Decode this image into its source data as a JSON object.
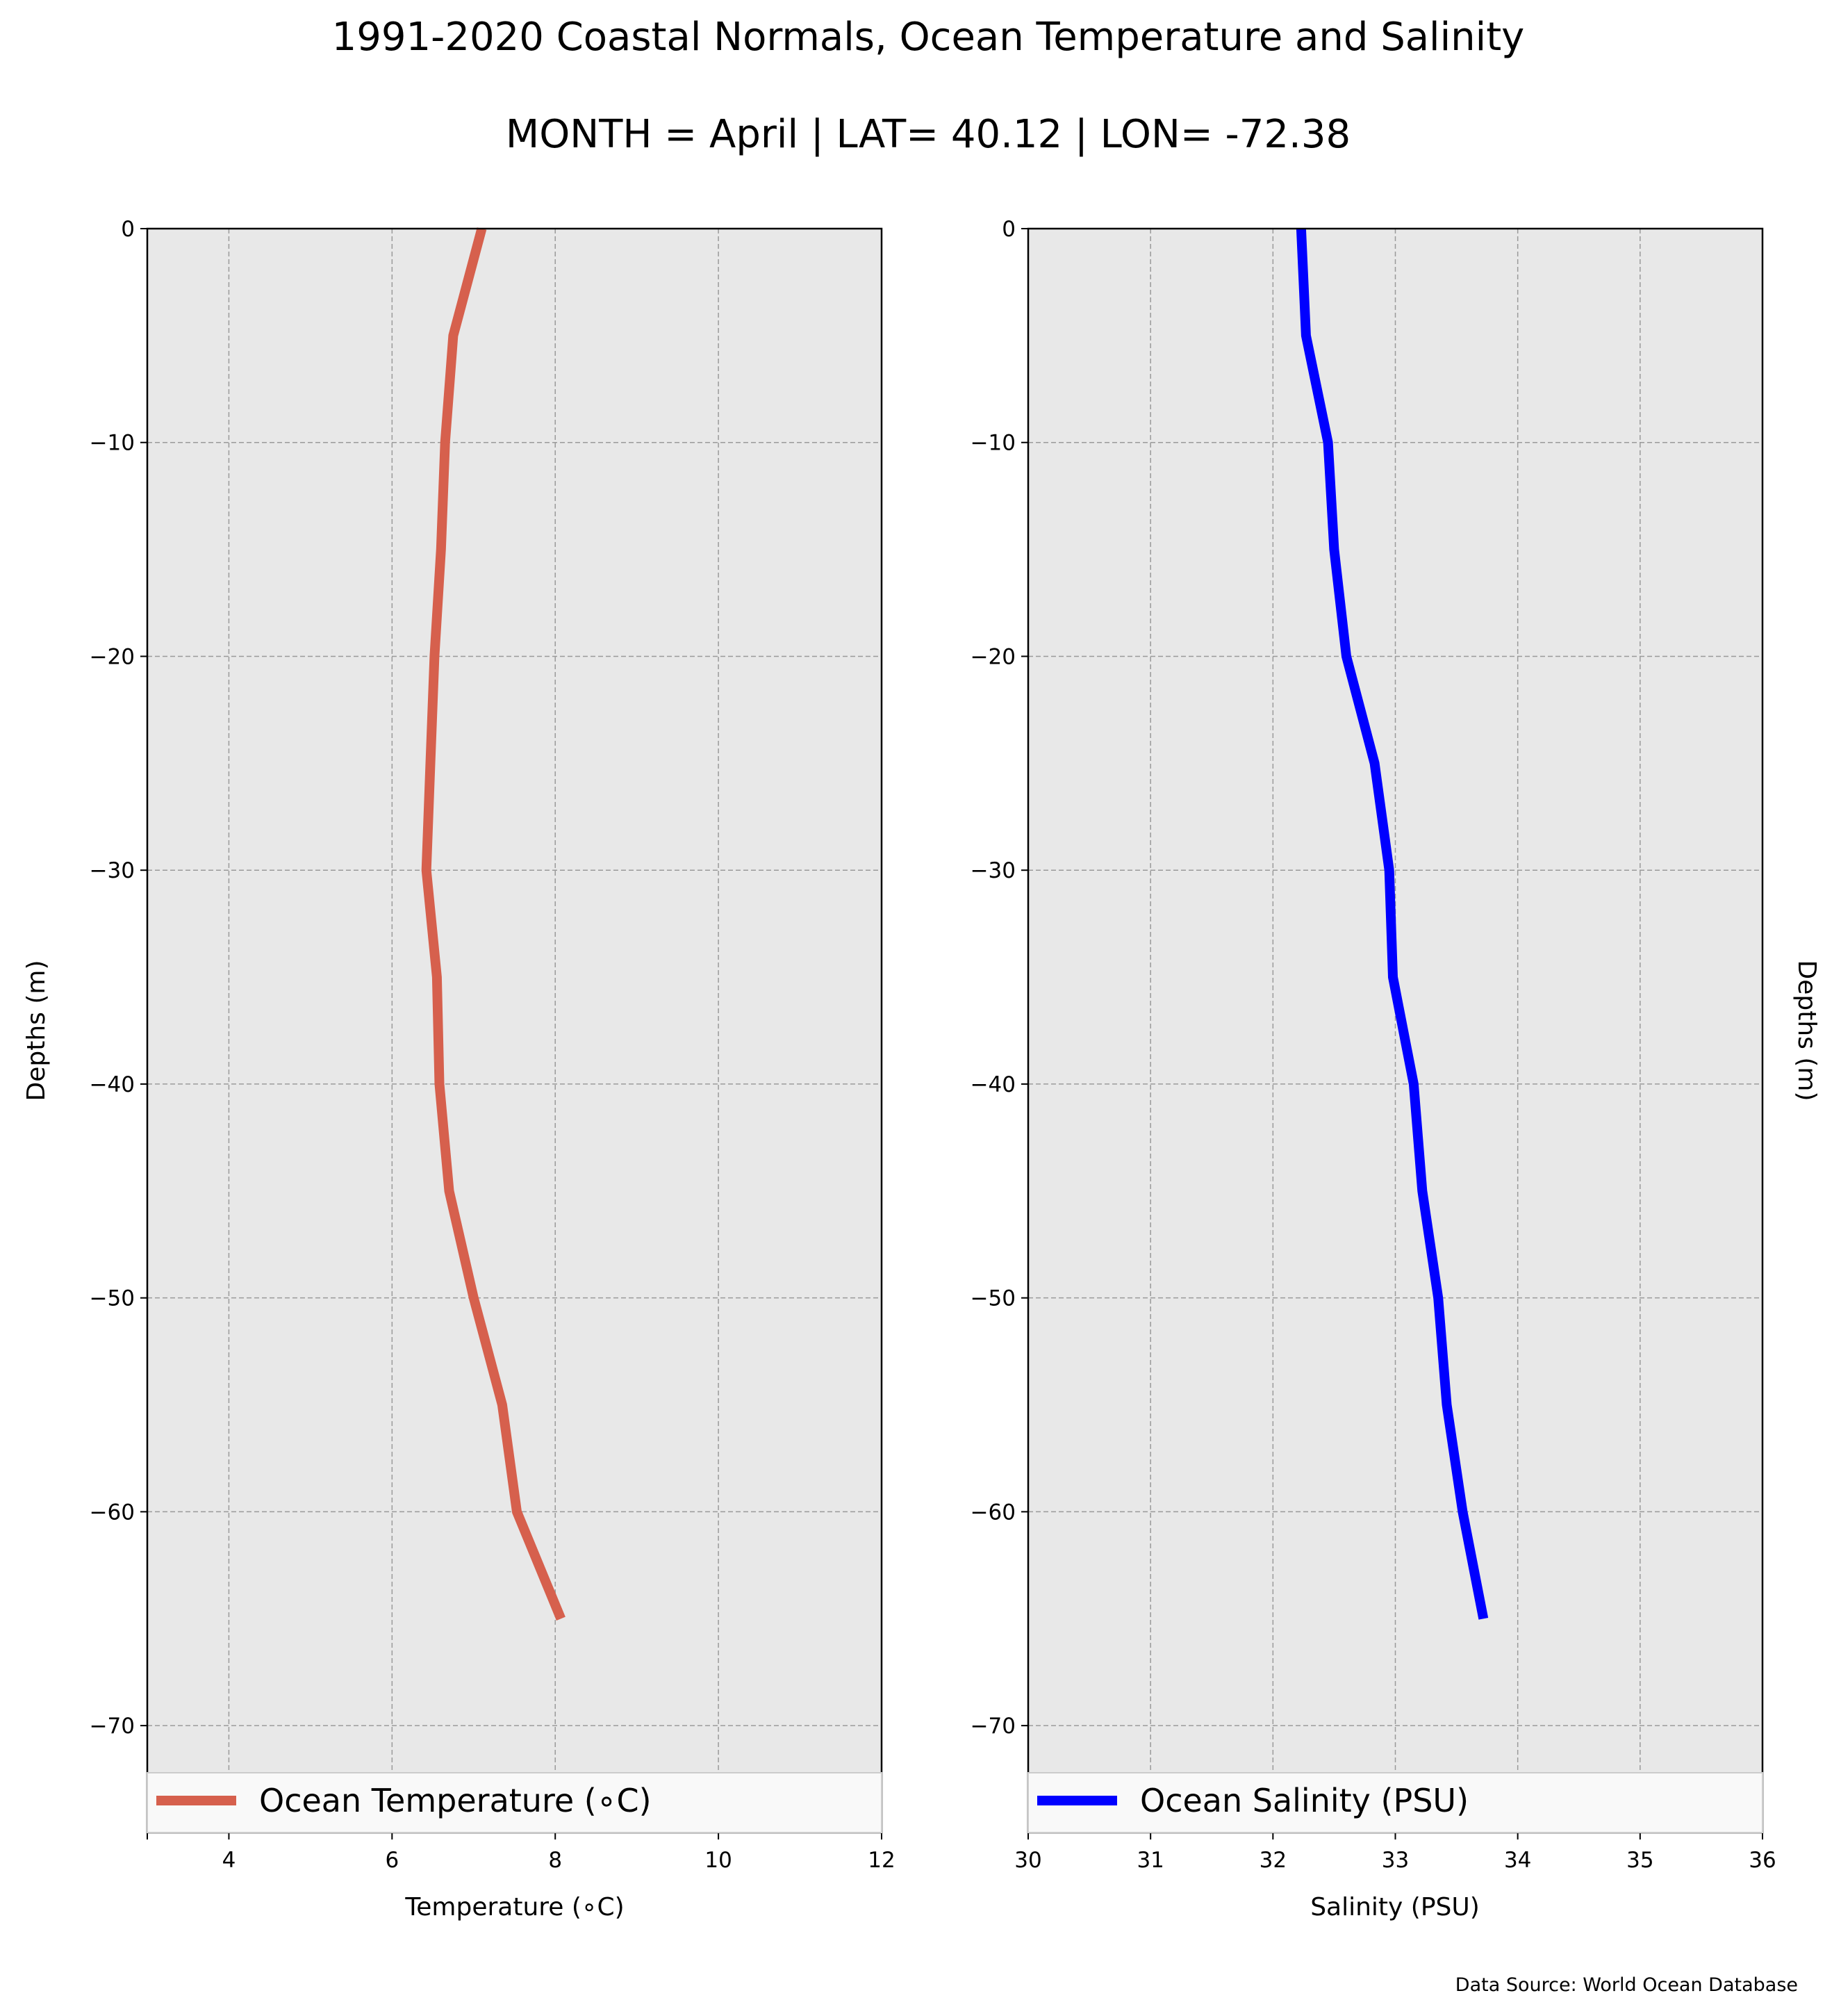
{
  "figure": {
    "title": "1991-2020 Coastal Normals, Ocean Temperature and Salinity",
    "subtitle": "MONTH = April | LAT= 40.12 | LON= -72.38",
    "source": "Data Source: World Ocean Database",
    "background": "#ffffff",
    "axes_facecolor": "#e8e8e8"
  },
  "chart_data": [
    {
      "type": "line",
      "xlabel": "Temperature (∘C)",
      "ylabel": "Depths (m)",
      "xlim": [
        3,
        12
      ],
      "ylim": [
        -75,
        0
      ],
      "xticks": [
        4,
        6,
        8,
        10,
        12
      ],
      "yticks": [
        0,
        -10,
        -20,
        -30,
        -40,
        -50,
        -60,
        -70
      ],
      "grid": true,
      "legend_position": "lower-center",
      "series": [
        {
          "name": "Ocean Temperature (∘C)",
          "color": "#d6604d",
          "x": [
            7.1,
            6.75,
            6.65,
            6.6,
            6.52,
            6.47,
            6.42,
            6.55,
            6.58,
            6.7,
            7.0,
            7.35,
            7.53,
            8.07
          ],
          "y": [
            0,
            -5,
            -10,
            -15,
            -20,
            -25,
            -30,
            -35,
            -40,
            -45,
            -50,
            -55,
            -60,
            -65
          ]
        }
      ]
    },
    {
      "type": "line",
      "xlabel": "Salinity (PSU)",
      "ylabel": "Depths (m)",
      "xlim": [
        30,
        36
      ],
      "ylim": [
        -75,
        0
      ],
      "xticks": [
        30,
        31,
        32,
        33,
        34,
        35,
        36
      ],
      "yticks": [
        0,
        -10,
        -20,
        -30,
        -40,
        -50,
        -60,
        -70
      ],
      "grid": true,
      "legend_position": "lower-center",
      "series": [
        {
          "name": "Ocean Salinity (PSU)",
          "color": "#0000ff",
          "x": [
            32.23,
            32.27,
            32.45,
            32.5,
            32.6,
            32.83,
            32.95,
            32.98,
            33.15,
            33.22,
            33.35,
            33.42,
            33.55,
            33.72
          ],
          "y": [
            0,
            -5,
            -10,
            -15,
            -20,
            -25,
            -30,
            -35,
            -40,
            -45,
            -50,
            -55,
            -60,
            -65
          ]
        }
      ]
    }
  ]
}
